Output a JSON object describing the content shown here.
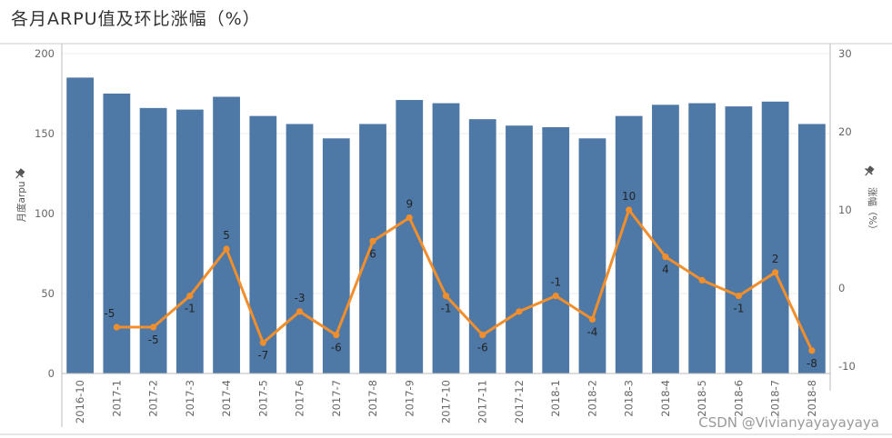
{
  "title": "各月ARPU值及环比涨幅（%）",
  "watermark": "CSDN @Vivianyayayayaya",
  "chart_data": {
    "type": "bar",
    "categories": [
      "2016-10",
      "2017-1",
      "2017-2",
      "2017-3",
      "2017-4",
      "2017-5",
      "2017-6",
      "2017-7",
      "2017-8",
      "2017-9",
      "2017-10",
      "2017-11",
      "2017-12",
      "2018-1",
      "2018-2",
      "2018-3",
      "2018-4",
      "2018-5",
      "2018-6",
      "2018-7",
      "2018-8"
    ],
    "ylabel_left": "月度arpu",
    "ylabel_right": "涨幅（%）",
    "ylim_left": [
      0,
      200
    ],
    "yticks_left": [
      0,
      50,
      100,
      150,
      200
    ],
    "ylim_right": [
      -10,
      30
    ],
    "yticks_right": [
      -10,
      0,
      10,
      20,
      30
    ],
    "bar_color": "#4e79a7",
    "line_color": "#f28e2b",
    "series": [
      {
        "type": "bar",
        "axis": "left",
        "values": [
          185,
          175,
          166,
          165,
          173,
          161,
          156,
          147,
          156,
          171,
          169,
          159,
          155,
          154,
          147,
          161,
          168,
          169,
          167,
          170,
          156
        ]
      },
      {
        "type": "line",
        "axis": "right",
        "values": [
          null,
          -5,
          -5,
          -1,
          5,
          -7,
          -3,
          -6,
          6,
          9,
          -1,
          -6,
          -3,
          -1,
          -4,
          10,
          4,
          1,
          -1,
          2,
          -8
        ],
        "labels": [
          "",
          "-5",
          "-5",
          "-1",
          "5",
          "-7",
          "-3",
          "-6",
          "6",
          "9",
          "-1",
          "-6",
          "",
          "-1",
          "-4",
          "10",
          "4",
          "",
          "-1",
          "2",
          "-8"
        ]
      }
    ]
  }
}
